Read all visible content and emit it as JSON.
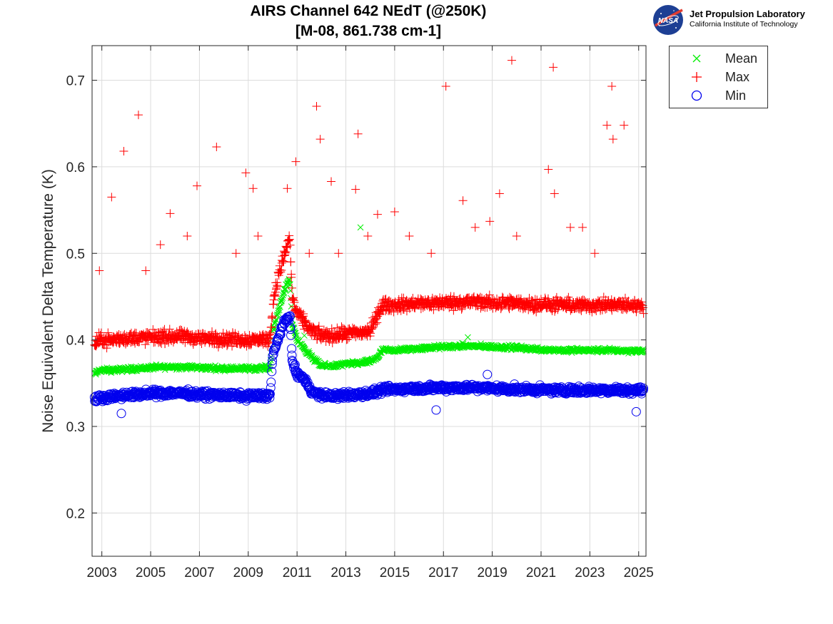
{
  "chart_data": {
    "type": "scatter",
    "title": [
      "AIRS Channel 642 NEdT (@250K)",
      "[M-08, 861.738 cm-1]"
    ],
    "xlabel": "",
    "ylabel": "Noise Equivalent Delta Temperature (K)",
    "xlim": [
      2002.6,
      2025.3
    ],
    "ylim": [
      0.15,
      0.74
    ],
    "xticks": [
      2003,
      2005,
      2007,
      2009,
      2011,
      2013,
      2015,
      2017,
      2019,
      2021,
      2023,
      2025
    ],
    "xtick_labels": [
      "2003",
      "2005",
      "2007",
      "2009",
      "2011",
      "2013",
      "2015",
      "2017",
      "2019",
      "2021",
      "2023",
      "2025"
    ],
    "yticks": [
      0.2,
      0.3,
      0.4,
      0.5,
      0.6,
      0.7
    ],
    "ytick_labels": [
      "0.2",
      "0.3",
      "0.4",
      "0.5",
      "0.6",
      "0.7"
    ],
    "grid": true,
    "legend_position": "outside-top-right",
    "series": [
      {
        "name": "Mean",
        "marker": "x",
        "color": "#00ee00",
        "x": [
          2002.7,
          2002.9,
          2003.5,
          2004.0,
          2005.0,
          2006.0,
          2007.0,
          2008.0,
          2009.0,
          2009.9,
          2010.0,
          2010.2,
          2010.4,
          2010.6,
          2010.7,
          2010.8,
          2011.0,
          2011.3,
          2011.6,
          2012.0,
          2012.5,
          2013.0,
          2013.5,
          2014.0,
          2014.3,
          2014.5,
          2015.0,
          2016.0,
          2017.0,
          2018.0,
          2019.0,
          2020.0,
          2021.0,
          2022.0,
          2023.0,
          2024.0,
          2025.2
        ],
        "y": [
          0.36,
          0.365,
          0.365,
          0.366,
          0.368,
          0.369,
          0.368,
          0.367,
          0.367,
          0.368,
          0.41,
          0.43,
          0.45,
          0.465,
          0.47,
          0.42,
          0.4,
          0.39,
          0.38,
          0.37,
          0.37,
          0.372,
          0.373,
          0.375,
          0.38,
          0.388,
          0.388,
          0.39,
          0.392,
          0.393,
          0.392,
          0.391,
          0.389,
          0.388,
          0.388,
          0.388,
          0.387
        ],
        "outliers": {
          "x": [
            2013.6,
            2011.3,
            2018.0
          ],
          "y": [
            0.53,
            0.405,
            0.403
          ]
        }
      },
      {
        "name": "Max",
        "marker": "+",
        "color": "#ff0000",
        "x": [
          2002.7,
          2002.9,
          2003.5,
          2004.0,
          2005.0,
          2006.0,
          2007.0,
          2008.0,
          2009.0,
          2009.9,
          2010.0,
          2010.2,
          2010.4,
          2010.6,
          2010.7,
          2010.8,
          2011.0,
          2011.3,
          2011.6,
          2012.0,
          2012.5,
          2013.0,
          2013.5,
          2014.0,
          2014.3,
          2014.5,
          2015.0,
          2016.0,
          2017.0,
          2018.0,
          2019.0,
          2020.0,
          2021.0,
          2022.0,
          2023.0,
          2024.0,
          2025.2
        ],
        "y": [
          0.395,
          0.4,
          0.4,
          0.402,
          0.403,
          0.404,
          0.402,
          0.401,
          0.4,
          0.401,
          0.44,
          0.47,
          0.49,
          0.51,
          0.52,
          0.45,
          0.43,
          0.42,
          0.41,
          0.405,
          0.405,
          0.407,
          0.408,
          0.41,
          0.43,
          0.44,
          0.44,
          0.442,
          0.443,
          0.444,
          0.443,
          0.442,
          0.441,
          0.44,
          0.44,
          0.44,
          0.44
        ],
        "outliers": {
          "x": [
            2003.4,
            2003.9,
            2004.5,
            2005.8,
            2006.9,
            2007.7,
            2008.9,
            2009.2,
            2010.6,
            2010.95,
            2011.8,
            2011.95,
            2012.4,
            2013.4,
            2013.5,
            2014.3,
            2015.0,
            2017.1,
            2017.8,
            2018.9,
            2019.3,
            2019.8,
            2021.3,
            2021.5,
            2021.55,
            2023.7,
            2023.9,
            2023.95,
            2024.4,
            2002.9,
            2004.8,
            2005.4,
            2006.5,
            2008.5,
            2009.4,
            2011.5,
            2012.7,
            2013.9,
            2015.6,
            2016.5,
            2018.3,
            2020.0,
            2022.2,
            2022.7,
            2023.2
          ],
          "y": [
            0.565,
            0.618,
            0.66,
            0.546,
            0.578,
            0.623,
            0.593,
            0.575,
            0.575,
            0.606,
            0.67,
            0.632,
            0.583,
            0.574,
            0.638,
            0.545,
            0.548,
            0.693,
            0.561,
            0.537,
            0.569,
            0.723,
            0.597,
            0.715,
            0.569,
            0.648,
            0.693,
            0.632,
            0.648,
            0.48,
            0.48,
            0.51,
            0.52,
            0.5,
            0.52,
            0.5,
            0.5,
            0.52,
            0.52,
            0.5,
            0.53,
            0.52,
            0.53,
            0.53,
            0.5
          ]
        }
      },
      {
        "name": "Min",
        "marker": "o",
        "color": "#0000ee",
        "x": [
          2002.7,
          2002.9,
          2003.5,
          2004.0,
          2005.0,
          2006.0,
          2007.0,
          2008.0,
          2009.0,
          2009.9,
          2010.0,
          2010.2,
          2010.4,
          2010.6,
          2010.7,
          2010.8,
          2011.0,
          2011.3,
          2011.6,
          2012.0,
          2012.5,
          2013.0,
          2013.5,
          2014.0,
          2014.3,
          2014.5,
          2015.0,
          2016.0,
          2017.0,
          2018.0,
          2019.0,
          2020.0,
          2021.0,
          2022.0,
          2023.0,
          2024.0,
          2025.2
        ],
        "y": [
          0.33,
          0.333,
          0.335,
          0.336,
          0.338,
          0.339,
          0.337,
          0.336,
          0.335,
          0.336,
          0.38,
          0.4,
          0.415,
          0.425,
          0.43,
          0.375,
          0.36,
          0.355,
          0.34,
          0.336,
          0.335,
          0.336,
          0.337,
          0.338,
          0.34,
          0.342,
          0.343,
          0.344,
          0.345,
          0.345,
          0.344,
          0.343,
          0.342,
          0.342,
          0.342,
          0.342,
          0.342
        ],
        "outliers": {
          "x": [
            2003.8,
            2016.7,
            2018.8,
            2024.9
          ],
          "y": [
            0.315,
            0.319,
            0.36,
            0.317
          ]
        }
      }
    ]
  },
  "logo": {
    "name": "Jet Propulsion Laboratory",
    "subtitle": "California Institute of Technology",
    "mark_text": "NASA"
  }
}
